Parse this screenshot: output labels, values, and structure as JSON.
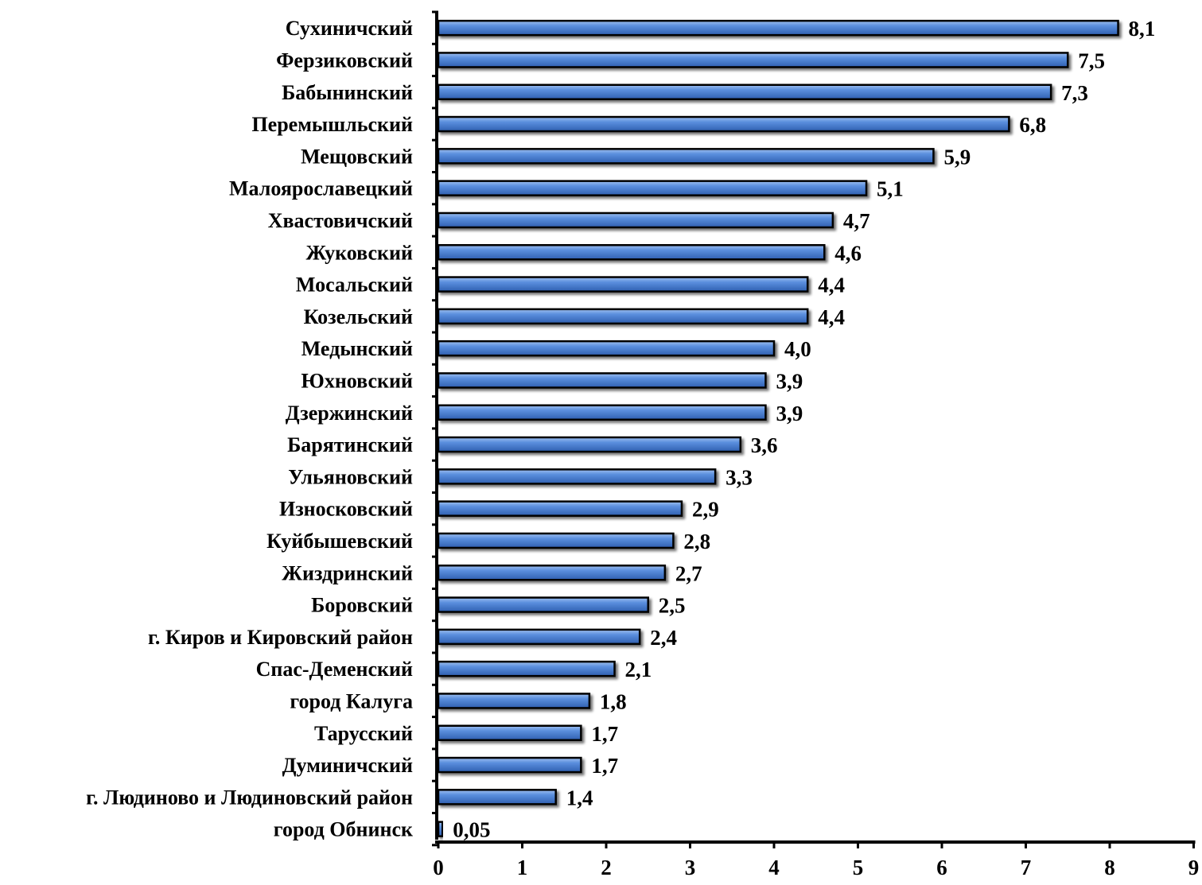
{
  "chart_data": {
    "type": "bar",
    "orientation": "horizontal",
    "title": "",
    "xlabel": "",
    "ylabel": "",
    "xlim": [
      0,
      9
    ],
    "x_ticks": [
      0,
      1,
      2,
      3,
      4,
      5,
      6,
      7,
      8,
      9
    ],
    "grid": false,
    "legend": "none",
    "bar_color": "#4A7DD0",
    "bar_outline_color": "#000000",
    "categories": [
      "Сухиничский",
      "Ферзиковский",
      "Бабынинский",
      "Перемышльский",
      "Мещовский",
      "Малоярославецкий",
      "Хвастовичский",
      "Жуковский",
      "Мосальский",
      "Козельский",
      "Медынский",
      "Юхновский",
      "Дзержинский",
      "Барятинский",
      "Ульяновский",
      "Износковский",
      "Куйбышевский",
      "Жиздринский",
      "Боровский",
      "г. Киров и Кировский район",
      "Спас-Деменский",
      "город Калуга",
      "Тарусский",
      "Думиничский",
      "г. Людиново и Людиновский район",
      "город Обнинск"
    ],
    "values": [
      8.1,
      7.5,
      7.3,
      6.8,
      5.9,
      5.1,
      4.7,
      4.6,
      4.4,
      4.4,
      4.0,
      3.9,
      3.9,
      3.6,
      3.3,
      2.9,
      2.8,
      2.7,
      2.5,
      2.4,
      2.1,
      1.8,
      1.7,
      1.7,
      1.4,
      0.05
    ],
    "value_labels": [
      "8,1",
      "7,5",
      "7,3",
      "6,8",
      "5,9",
      "5,1",
      "4,7",
      "4,6",
      "4,4",
      "4,4",
      "4,0",
      "3,9",
      "3,9",
      "3,6",
      "3,3",
      "2,9",
      "2,8",
      "2,7",
      "2,5",
      "2,4",
      "2,1",
      "1,8",
      "1,7",
      "1,7",
      "1,4",
      "0,05"
    ]
  }
}
